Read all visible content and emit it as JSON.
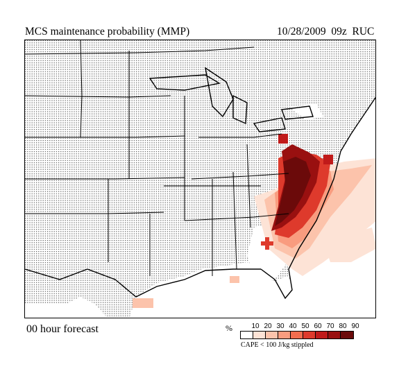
{
  "header": {
    "title": "MCS maintenance probability (MMP)",
    "date_label": "10/28/2009  09z  RUC"
  },
  "footer": {
    "forecast_label": "00 hour forecast",
    "stipple_note": "CAPE < 100 J/kg stippled"
  },
  "legend": {
    "unit": "%",
    "ticks": [
      "10",
      "20",
      "30",
      "40",
      "50",
      "60",
      "70",
      "80",
      "90"
    ],
    "colors": [
      "#ffffff",
      "#fde3d6",
      "#fcc3ab",
      "#f99c7f",
      "#f26d4f",
      "#de3a2c",
      "#c01a1a",
      "#991010",
      "#6b0a0a"
    ]
  },
  "map": {
    "stipple_color": "#555555",
    "border_color": "#000000"
  }
}
